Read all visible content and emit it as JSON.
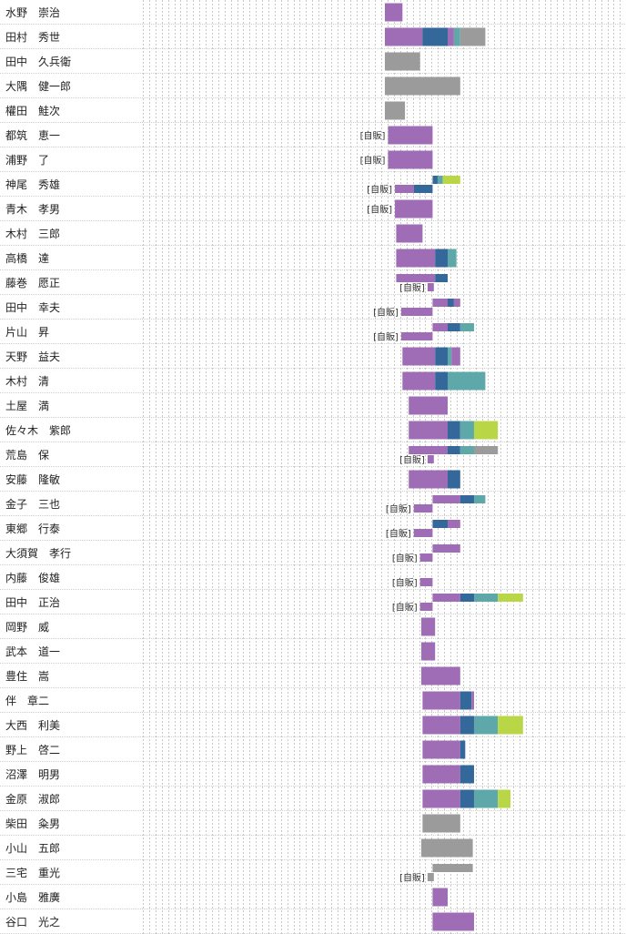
{
  "chart_data": {
    "type": "timeline",
    "colors": {
      "purple": "#9f6db5",
      "blue": "#34679a",
      "teal": "#5fa8aa",
      "lime": "#b9d646",
      "gray": "#9b9b9b",
      "grid": "#c8c8c8",
      "row_line": "#cfcfcf"
    },
    "rows": [
      {
        "name": "水野　崇治",
        "tracks": [
          [
            {
              "s": 0,
              "e": 1.4,
              "c": "purple"
            }
          ]
        ]
      },
      {
        "name": "田村　秀世",
        "tracks": [
          [
            {
              "s": 0,
              "e": 3,
              "c": "purple"
            },
            {
              "s": 3,
              "e": 5,
              "c": "blue"
            },
            {
              "s": 5,
              "e": 5.5,
              "c": "purple"
            },
            {
              "s": 5.5,
              "e": 6,
              "c": "teal"
            },
            {
              "s": 6,
              "e": 8,
              "c": "gray"
            }
          ]
        ]
      },
      {
        "name": "田中　久兵衛",
        "tracks": [
          [
            {
              "s": 0,
              "e": 2.8,
              "c": "gray"
            }
          ]
        ]
      },
      {
        "name": "大隅　健一郎",
        "tracks": [
          [
            {
              "s": 0,
              "e": 6,
              "c": "gray"
            }
          ]
        ]
      },
      {
        "name": "權田　鮭次",
        "tracks": [
          [
            {
              "s": 0,
              "e": 1.6,
              "c": "gray"
            }
          ]
        ]
      },
      {
        "name": "都筑　恵一",
        "tracks": [
          [
            {
              "s": 0.25,
              "e": 3.8,
              "c": "purple"
            }
          ]
        ],
        "tag": "[自販]"
      },
      {
        "name": "浦野　了",
        "tracks": [
          [
            {
              "s": 0.25,
              "e": 3.8,
              "c": "purple"
            }
          ]
        ],
        "tag": "[自販]"
      },
      {
        "name": "神尾　秀雄",
        "tracks": [
          [
            {
              "s": 3.8,
              "e": 4.2,
              "c": "blue"
            },
            {
              "s": 4.2,
              "e": 4.6,
              "c": "teal"
            },
            {
              "s": 4.6,
              "e": 6,
              "c": "lime"
            }
          ],
          [
            {
              "s": 0.8,
              "e": 2.3,
              "c": "purple"
            },
            {
              "s": 2.3,
              "e": 3.8,
              "c": "blue"
            }
          ]
        ],
        "tag": "[自販]"
      },
      {
        "name": "青木　孝男",
        "tracks": [
          [
            {
              "s": 0.8,
              "e": 3.8,
              "c": "purple"
            }
          ]
        ],
        "tag": "[自販]"
      },
      {
        "name": "木村　三郎",
        "tracks": [
          [
            {
              "s": 0.9,
              "e": 3,
              "c": "purple"
            }
          ]
        ]
      },
      {
        "name": "高橋　達",
        "tracks": [
          [
            {
              "s": 0.9,
              "e": 4,
              "c": "purple"
            },
            {
              "s": 4,
              "e": 5,
              "c": "blue"
            },
            {
              "s": 5,
              "e": 5.7,
              "c": "teal"
            }
          ]
        ]
      },
      {
        "name": "藤巻　愿正",
        "tracks": [
          [
            {
              "s": 0.9,
              "e": 4,
              "c": "purple"
            },
            {
              "s": 4,
              "e": 5,
              "c": "blue"
            }
          ],
          [
            {
              "s": 3.4,
              "e": 3.9,
              "c": "purple"
            }
          ]
        ],
        "tag": "[自販]"
      },
      {
        "name": "田中　幸夫",
        "tracks": [
          [
            {
              "s": 3.8,
              "e": 5,
              "c": "purple"
            },
            {
              "s": 5,
              "e": 5.5,
              "c": "blue"
            },
            {
              "s": 5.5,
              "e": 6,
              "c": "purple"
            }
          ],
          [
            {
              "s": 1.3,
              "e": 3.8,
              "c": "purple"
            }
          ]
        ],
        "tag": "[自販]"
      },
      {
        "name": "片山　昇",
        "tracks": [
          [
            {
              "s": 3.8,
              "e": 5,
              "c": "purple"
            },
            {
              "s": 5,
              "e": 6,
              "c": "blue"
            },
            {
              "s": 6,
              "e": 7.1,
              "c": "teal"
            }
          ],
          [
            {
              "s": 1.3,
              "e": 3.8,
              "c": "purple"
            }
          ]
        ],
        "tag": "[自販]"
      },
      {
        "name": "天野　益夫",
        "tracks": [
          [
            {
              "s": 1.4,
              "e": 4,
              "c": "purple"
            },
            {
              "s": 4,
              "e": 5,
              "c": "blue"
            },
            {
              "s": 5,
              "e": 5.3,
              "c": "teal"
            },
            {
              "s": 5.3,
              "e": 6,
              "c": "purple"
            }
          ]
        ]
      },
      {
        "name": "木村　清",
        "tracks": [
          [
            {
              "s": 1.4,
              "e": 4,
              "c": "purple"
            },
            {
              "s": 4,
              "e": 5,
              "c": "blue"
            },
            {
              "s": 5,
              "e": 8,
              "c": "teal"
            }
          ]
        ]
      },
      {
        "name": "土屋　満",
        "tracks": [
          [
            {
              "s": 1.9,
              "e": 5,
              "c": "purple"
            }
          ]
        ]
      },
      {
        "name": "佐々木　紫郎",
        "tracks": [
          [
            {
              "s": 1.9,
              "e": 5,
              "c": "purple"
            },
            {
              "s": 5,
              "e": 6,
              "c": "blue"
            },
            {
              "s": 6,
              "e": 7.1,
              "c": "teal"
            },
            {
              "s": 7.1,
              "e": 9,
              "c": "lime"
            }
          ]
        ]
      },
      {
        "name": "荒島　保",
        "tracks": [
          [
            {
              "s": 1.9,
              "e": 5,
              "c": "purple"
            },
            {
              "s": 5,
              "e": 6,
              "c": "blue"
            },
            {
              "s": 6,
              "e": 7.1,
              "c": "teal"
            },
            {
              "s": 7.1,
              "e": 9,
              "c": "gray"
            }
          ],
          [
            {
              "s": 3.4,
              "e": 3.9,
              "c": "purple"
            }
          ]
        ],
        "tag": "[自販]"
      },
      {
        "name": "安藤　隆敏",
        "tracks": [
          [
            {
              "s": 1.9,
              "e": 5,
              "c": "purple"
            },
            {
              "s": 5,
              "e": 6,
              "c": "blue"
            }
          ]
        ]
      },
      {
        "name": "金子　三也",
        "tracks": [
          [
            {
              "s": 3.8,
              "e": 6,
              "c": "purple"
            },
            {
              "s": 6,
              "e": 7.1,
              "c": "blue"
            },
            {
              "s": 7.1,
              "e": 8,
              "c": "teal"
            }
          ],
          [
            {
              "s": 2.3,
              "e": 3.8,
              "c": "purple"
            }
          ]
        ],
        "tag": "[自販]"
      },
      {
        "name": "東郷　行泰",
        "tracks": [
          [
            {
              "s": 3.8,
              "e": 5,
              "c": "blue"
            },
            {
              "s": 5,
              "e": 6,
              "c": "purple"
            }
          ],
          [
            {
              "s": 2.3,
              "e": 3.8,
              "c": "purple"
            }
          ]
        ],
        "tag": "[自販]"
      },
      {
        "name": "大須賀　孝行",
        "tracks": [
          [
            {
              "s": 3.8,
              "e": 6,
              "c": "purple"
            }
          ],
          [
            {
              "s": 2.8,
              "e": 3.8,
              "c": "purple"
            }
          ]
        ],
        "tag": "[自販]"
      },
      {
        "name": "内藤　俊雄",
        "tracks": [
          [],
          [
            {
              "s": 2.8,
              "e": 3.8,
              "c": "purple"
            }
          ]
        ],
        "tag": "[自販]"
      },
      {
        "name": "田中　正治",
        "tracks": [
          [
            {
              "s": 3.8,
              "e": 6,
              "c": "purple"
            },
            {
              "s": 6,
              "e": 7.1,
              "c": "blue"
            },
            {
              "s": 7.1,
              "e": 9,
              "c": "teal"
            },
            {
              "s": 9,
              "e": 11,
              "c": "lime"
            }
          ],
          [
            {
              "s": 2.8,
              "e": 3.8,
              "c": "purple"
            }
          ]
        ],
        "tag": "[自販]"
      },
      {
        "name": "岡野　威",
        "tracks": [
          [
            {
              "s": 2.9,
              "e": 4,
              "c": "purple"
            }
          ]
        ]
      },
      {
        "name": "武本　道一",
        "tracks": [
          [
            {
              "s": 2.9,
              "e": 4,
              "c": "purple"
            }
          ]
        ]
      },
      {
        "name": "豊住　嵩",
        "tracks": [
          [
            {
              "s": 2.9,
              "e": 6,
              "c": "purple"
            }
          ]
        ]
      },
      {
        "name": "伴　章二",
        "tracks": [
          [
            {
              "s": 3,
              "e": 6,
              "c": "purple"
            },
            {
              "s": 6,
              "e": 6.9,
              "c": "blue"
            },
            {
              "s": 6.9,
              "e": 7.1,
              "c": "purple"
            }
          ]
        ]
      },
      {
        "name": "大西　利美",
        "tracks": [
          [
            {
              "s": 3,
              "e": 6,
              "c": "purple"
            },
            {
              "s": 6,
              "e": 7.1,
              "c": "blue"
            },
            {
              "s": 7.1,
              "e": 9,
              "c": "teal"
            },
            {
              "s": 9,
              "e": 11,
              "c": "lime"
            }
          ]
        ]
      },
      {
        "name": "野上　啓二",
        "tracks": [
          [
            {
              "s": 3,
              "e": 6,
              "c": "purple"
            },
            {
              "s": 6,
              "e": 6.4,
              "c": "blue"
            }
          ]
        ]
      },
      {
        "name": "沼澤　明男",
        "tracks": [
          [
            {
              "s": 3,
              "e": 6,
              "c": "purple"
            },
            {
              "s": 6,
              "e": 7.1,
              "c": "blue"
            }
          ]
        ]
      },
      {
        "name": "金原　淑郎",
        "tracks": [
          [
            {
              "s": 3,
              "e": 6,
              "c": "purple"
            },
            {
              "s": 6,
              "e": 7.1,
              "c": "blue"
            },
            {
              "s": 7.1,
              "e": 9,
              "c": "teal"
            },
            {
              "s": 9,
              "e": 10,
              "c": "lime"
            }
          ]
        ]
      },
      {
        "name": "柴田　粂男",
        "tracks": [
          [
            {
              "s": 3,
              "e": 6,
              "c": "gray"
            }
          ]
        ]
      },
      {
        "name": "小山　五郎",
        "tracks": [
          [
            {
              "s": 2.9,
              "e": 7,
              "c": "gray"
            }
          ]
        ]
      },
      {
        "name": "三宅　重光",
        "tracks": [
          [
            {
              "s": 3.8,
              "e": 7,
              "c": "gray"
            }
          ],
          [
            {
              "s": 3.4,
              "e": 3.9,
              "c": "gray"
            }
          ]
        ],
        "tag": "[自販]"
      },
      {
        "name": "小島　雅廣",
        "tracks": [
          [
            {
              "s": 3.8,
              "e": 5,
              "c": "purple"
            }
          ]
        ]
      },
      {
        "name": "谷口　光之",
        "tracks": [
          [
            {
              "s": 3.8,
              "e": 7.1,
              "c": "purple"
            }
          ]
        ]
      }
    ]
  }
}
